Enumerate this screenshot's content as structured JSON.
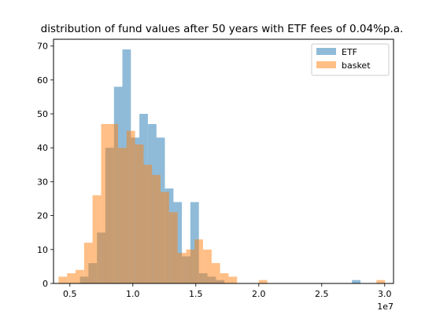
{
  "chart_data": {
    "type": "bar",
    "title": "distribution of fund values after 50 years with ETF fees of 0.04%p.a.",
    "xlabel": "",
    "ylabel": "",
    "x_offset_label": "1e7",
    "xlim": [
      0.37,
      3.07
    ],
    "ylim": [
      0,
      72
    ],
    "xticks": [
      0.5,
      1.0,
      1.5,
      2.0,
      2.5,
      3.0
    ],
    "xtick_labels": [
      "0.5",
      "1.0",
      "1.5",
      "2.0",
      "2.5",
      "3.0"
    ],
    "yticks": [
      0,
      10,
      20,
      30,
      40,
      50,
      60,
      70
    ],
    "grid": false,
    "legend_position": "top-right",
    "bin_width": 0.0675,
    "series": [
      {
        "name": "ETF",
        "color": "#1f77b4",
        "alpha": 0.5,
        "bin_starts": [
          0.58,
          0.647,
          0.715,
          0.782,
          0.85,
          0.917,
          0.985,
          1.052,
          1.12,
          1.187,
          1.255,
          1.322,
          1.39,
          1.457,
          1.525,
          1.592,
          1.66,
          2.74
        ],
        "values": [
          2,
          6,
          15,
          40,
          58,
          69,
          43,
          50,
          47,
          43,
          28,
          24,
          8,
          24,
          3,
          2,
          1,
          1
        ]
      },
      {
        "name": "basket",
        "color": "#ff7f0e",
        "alpha": 0.5,
        "bin_starts": [
          0.41,
          0.478,
          0.545,
          0.613,
          0.68,
          0.748,
          0.815,
          0.883,
          0.95,
          1.018,
          1.085,
          1.153,
          1.22,
          1.288,
          1.355,
          1.423,
          1.49,
          1.558,
          1.625,
          1.693,
          1.76,
          2.0,
          2.935
        ],
        "values": [
          2,
          3,
          4,
          12,
          26,
          47,
          47,
          40,
          45,
          41,
          35,
          32,
          27,
          21,
          9,
          10,
          13,
          10,
          6,
          3,
          2,
          1,
          1
        ]
      }
    ]
  }
}
